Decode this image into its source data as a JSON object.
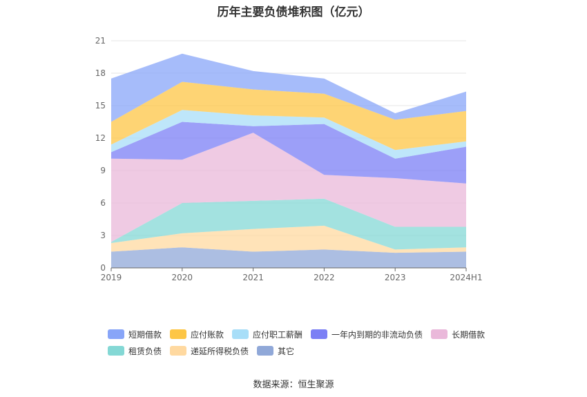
{
  "title": "历年主要负债堆积图（亿元）",
  "source": "数据来源：恒生聚源",
  "chart_data": {
    "type": "area",
    "stacked": true,
    "categories": [
      "2019",
      "2020",
      "2021",
      "2022",
      "2023",
      "2024H1"
    ],
    "ylim": [
      0,
      21
    ],
    "yticks": [
      0,
      3,
      6,
      9,
      12,
      15,
      18,
      21
    ],
    "grid": true,
    "legend_position": "bottom",
    "series": [
      {
        "name": "其它",
        "color": "#90a8d8",
        "values": [
          1.5,
          1.9,
          1.5,
          1.7,
          1.4,
          1.5
        ]
      },
      {
        "name": "递延所得税负债",
        "color": "#ffd9a0",
        "values": [
          0.8,
          1.3,
          2.1,
          2.2,
          0.3,
          0.4
        ]
      },
      {
        "name": "租赁负债",
        "color": "#84d8d5",
        "values": [
          0.1,
          2.8,
          2.6,
          2.5,
          2.1,
          1.9
        ]
      },
      {
        "name": "长期借款",
        "color": "#eab8da",
        "values": [
          7.7,
          4.0,
          6.3,
          2.2,
          4.5,
          4.0
        ]
      },
      {
        "name": "一年内到期的非流动负债",
        "color": "#7b7ff5",
        "values": [
          0.6,
          3.5,
          0.6,
          4.7,
          1.8,
          3.4
        ]
      },
      {
        "name": "应付职工薪酬",
        "color": "#a8def8",
        "values": [
          0.7,
          1.1,
          1.0,
          0.6,
          0.8,
          0.5
        ]
      },
      {
        "name": "应付账款",
        "color": "#fdc645",
        "values": [
          2.1,
          2.6,
          2.4,
          2.2,
          2.8,
          2.8
        ]
      },
      {
        "name": "短期借款",
        "color": "#88a5f8",
        "values": [
          4.0,
          2.6,
          1.7,
          1.4,
          0.6,
          1.8
        ]
      }
    ]
  }
}
